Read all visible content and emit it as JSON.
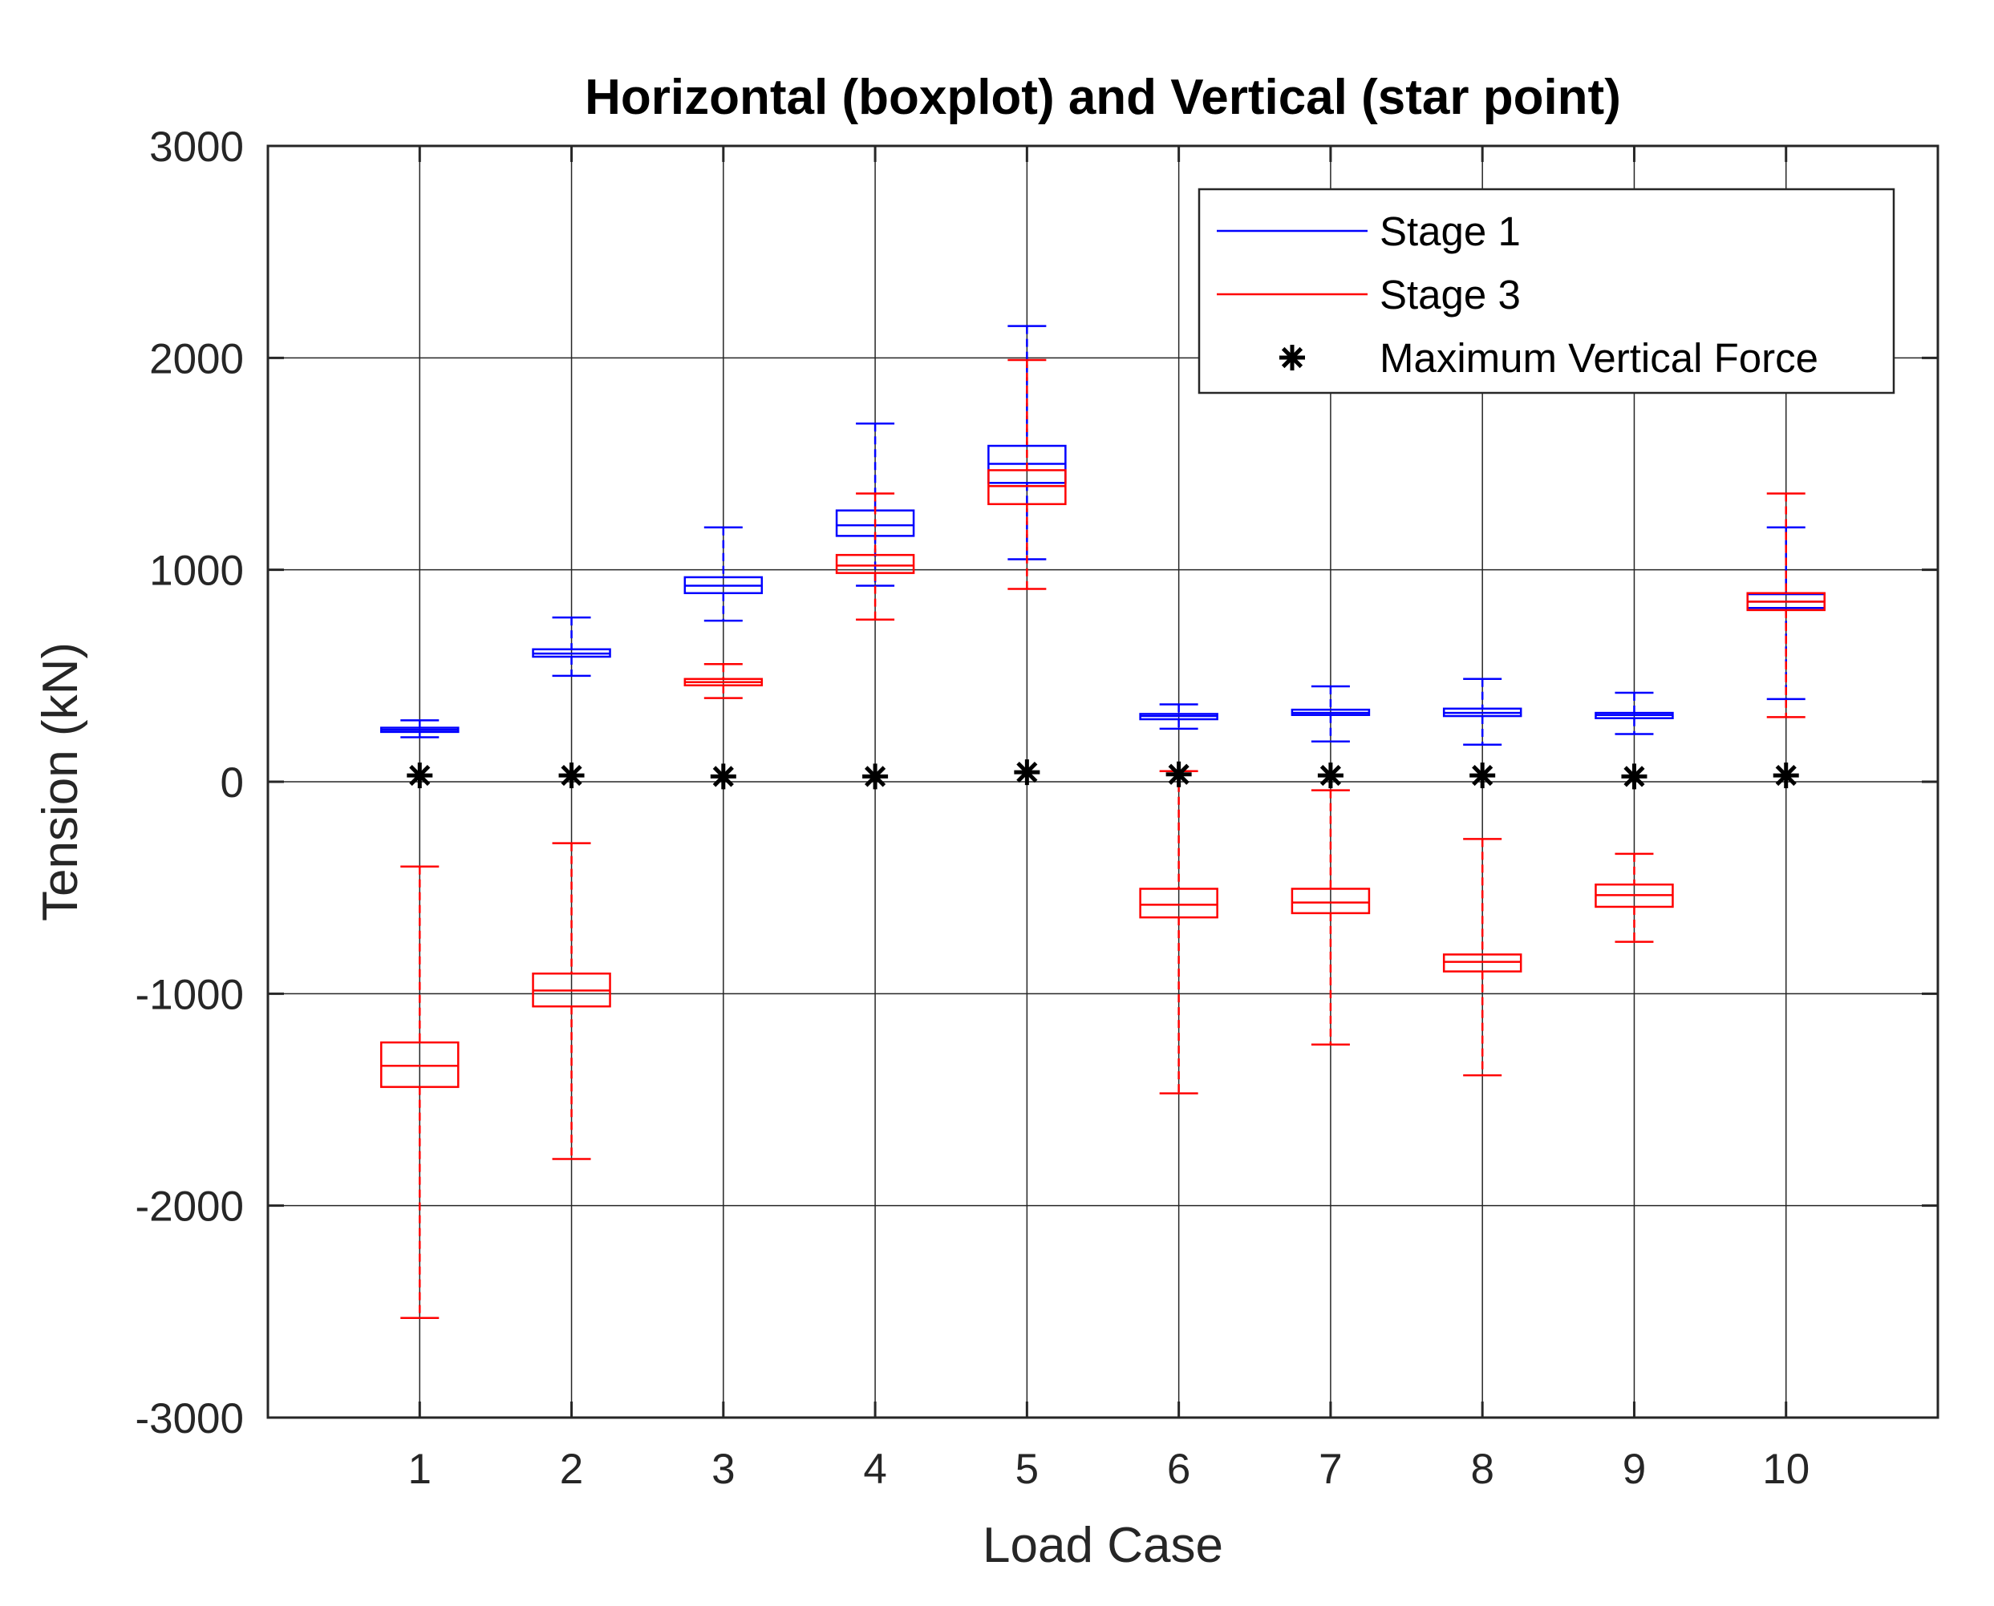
{
  "chart_data": {
    "type": "boxplot",
    "title": "Horizontal (boxplot) and Vertical (star point)",
    "xlabel": "Load Case",
    "ylabel": "Tension (kN)",
    "ylim": [
      -3000,
      3000
    ],
    "xlim": [
      0,
      11
    ],
    "yticks": [
      3000,
      2000,
      1000,
      0,
      -1000,
      -2000,
      -3000
    ],
    "ytick_labels": [
      "3000",
      "2000",
      "1000",
      "0",
      "-1000",
      "-2000",
      "-3000"
    ],
    "categories": [
      "1",
      "2",
      "3",
      "4",
      "5",
      "6",
      "7",
      "8",
      "9",
      "10"
    ],
    "grid": true,
    "legend_position": "top-right",
    "series": [
      {
        "name": "Stage 1",
        "color": "#0000ff",
        "boxes": [
          {
            "case": 1,
            "min": 210,
            "q1": 235,
            "median": 245,
            "q3": 255,
            "max": 290
          },
          {
            "case": 2,
            "min": 500,
            "q1": 590,
            "median": 605,
            "q3": 625,
            "max": 775
          },
          {
            "case": 3,
            "min": 760,
            "q1": 890,
            "median": 925,
            "q3": 965,
            "max": 1200
          },
          {
            "case": 4,
            "min": 925,
            "q1": 1160,
            "median": 1210,
            "q3": 1280,
            "max": 1690
          },
          {
            "case": 5,
            "min": 1050,
            "q1": 1410,
            "median": 1500,
            "q3": 1585,
            "max": 2150
          },
          {
            "case": 6,
            "min": 250,
            "q1": 295,
            "median": 310,
            "q3": 320,
            "max": 365
          },
          {
            "case": 7,
            "min": 190,
            "q1": 315,
            "median": 325,
            "q3": 340,
            "max": 450
          },
          {
            "case": 8,
            "min": 175,
            "q1": 310,
            "median": 325,
            "q3": 345,
            "max": 485
          },
          {
            "case": 9,
            "min": 225,
            "q1": 300,
            "median": 315,
            "q3": 325,
            "max": 420
          },
          {
            "case": 10,
            "min": 390,
            "q1": 820,
            "median": 850,
            "q3": 885,
            "max": 1200
          }
        ]
      },
      {
        "name": "Stage 3",
        "color": "#ff0000",
        "boxes": [
          {
            "case": 1,
            "min": -2530,
            "q1": -1440,
            "median": -1340,
            "q3": -1230,
            "max": -400
          },
          {
            "case": 2,
            "min": -1780,
            "q1": -1060,
            "median": -985,
            "q3": -905,
            "max": -290
          },
          {
            "case": 3,
            "min": 395,
            "q1": 455,
            "median": 470,
            "q3": 485,
            "max": 555
          },
          {
            "case": 4,
            "min": 765,
            "q1": 985,
            "median": 1020,
            "q3": 1070,
            "max": 1360
          },
          {
            "case": 5,
            "min": 910,
            "q1": 1310,
            "median": 1395,
            "q3": 1470,
            "max": 1990
          },
          {
            "case": 6,
            "min": -1470,
            "q1": -640,
            "median": -580,
            "q3": -505,
            "max": 50
          },
          {
            "case": 7,
            "min": -1240,
            "q1": -620,
            "median": -570,
            "q3": -505,
            "max": -40
          },
          {
            "case": 8,
            "min": -1385,
            "q1": -895,
            "median": -850,
            "q3": -815,
            "max": -270
          },
          {
            "case": 9,
            "min": -755,
            "q1": -590,
            "median": -535,
            "q3": -485,
            "max": -340
          },
          {
            "case": 10,
            "min": 305,
            "q1": 810,
            "median": 850,
            "q3": 890,
            "max": 1360
          }
        ]
      }
    ],
    "star_points": {
      "name": "Maximum Vertical Force",
      "color": "#000000",
      "values": [
        30,
        30,
        25,
        25,
        45,
        35,
        30,
        30,
        25,
        30
      ]
    },
    "legend": [
      "Stage 1",
      "Stage 3",
      "Maximum Vertical Force"
    ]
  }
}
